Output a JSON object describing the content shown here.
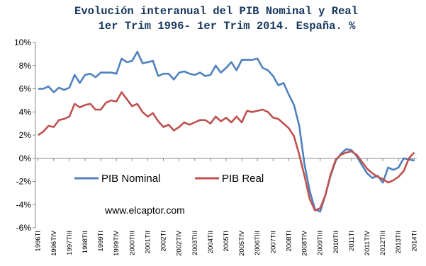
{
  "chart_data": {
    "type": "line",
    "title": [
      "Evolución interanual del PIB Nominal y Real",
      "1er Trim 1996- 1er Trim 2014. España. %"
    ],
    "categories": [
      "1996TI",
      null,
      null,
      "1996TIV",
      null,
      null,
      "1997TIII",
      null,
      null,
      "1998TII",
      null,
      null,
      "1999TI",
      null,
      null,
      "1999TIV",
      null,
      null,
      "2000TIII",
      null,
      null,
      "2001TII",
      null,
      null,
      "2002TI",
      null,
      null,
      "2002TIV",
      null,
      null,
      "2003TIII",
      null,
      null,
      "2004TII",
      null,
      null,
      "2005TI",
      null,
      null,
      "2005TIV",
      null,
      null,
      "2006TIII",
      null,
      null,
      "2007TII",
      null,
      null,
      "2008TI",
      null,
      null,
      "2008TIV",
      null,
      null,
      "2009TIII",
      null,
      null,
      "2010TII",
      null,
      null,
      "2011TI",
      null,
      null,
      "2011TIV",
      null,
      null,
      "2012TIII",
      null,
      null,
      "2013TII",
      null,
      null,
      "2014TI"
    ],
    "series": [
      {
        "name": "PIB Nominal",
        "color": "#4f81bd",
        "values": [
          6.0,
          6.0,
          6.2,
          5.7,
          6.1,
          5.9,
          6.1,
          7.2,
          6.5,
          7.2,
          7.3,
          7.0,
          7.4,
          7.4,
          7.4,
          7.3,
          8.6,
          8.3,
          8.4,
          9.2,
          8.2,
          8.3,
          8.4,
          7.1,
          7.3,
          7.3,
          6.8,
          7.4,
          7.5,
          7.3,
          7.2,
          7.4,
          7.1,
          7.2,
          8.0,
          7.4,
          7.8,
          8.3,
          7.6,
          8.5,
          8.5,
          8.5,
          8.6,
          7.8,
          7.6,
          7.1,
          6.3,
          6.5,
          5.5,
          4.6,
          2.8,
          -0.5,
          -2.8,
          -4.4,
          -4.6,
          -3.2,
          -1.5,
          -0.2,
          0.4,
          0.8,
          0.7,
          0.2,
          -0.6,
          -1.3,
          -1.7,
          -1.5,
          -2.1,
          -0.8,
          -1.0,
          -0.8,
          0.0,
          -0.1,
          -0.2
        ]
      },
      {
        "name": "PIB Real",
        "color": "#c0504d",
        "values": [
          2.0,
          2.3,
          2.8,
          2.7,
          3.3,
          3.4,
          3.6,
          4.7,
          4.4,
          4.6,
          4.7,
          4.2,
          4.2,
          4.8,
          5.0,
          4.9,
          5.7,
          5.1,
          4.5,
          4.7,
          4.0,
          3.6,
          3.9,
          3.2,
          2.7,
          2.9,
          2.4,
          2.7,
          3.1,
          2.9,
          3.1,
          3.3,
          3.3,
          3.0,
          3.6,
          3.2,
          3.5,
          3.1,
          3.6,
          3.1,
          4.1,
          4.0,
          4.1,
          4.2,
          4.0,
          3.5,
          3.4,
          3.0,
          2.6,
          1.9,
          0.3,
          -1.5,
          -3.5,
          -4.5,
          -4.3,
          -3.2,
          -1.4,
          -0.1,
          0.3,
          0.5,
          0.6,
          0.3,
          -0.3,
          -0.9,
          -1.3,
          -1.6,
          -1.8,
          -2.1,
          -1.9,
          -1.6,
          -1.1,
          0.0,
          0.5
        ]
      }
    ],
    "ylim": [
      -6,
      10
    ],
    "yticks": [
      {
        "value": -6,
        "label": "-6%"
      },
      {
        "value": -4,
        "label": "-4%"
      },
      {
        "value": -2,
        "label": "-2%"
      },
      {
        "value": 0,
        "label": "0%"
      },
      {
        "value": 2,
        "label": "2%"
      },
      {
        "value": 4,
        "label": "4%"
      },
      {
        "value": 6,
        "label": "6%"
      },
      {
        "value": 8,
        "label": "8%"
      },
      {
        "value": 10,
        "label": "10%"
      }
    ],
    "annotation": "www.elcaptor.com",
    "grid": false
  }
}
